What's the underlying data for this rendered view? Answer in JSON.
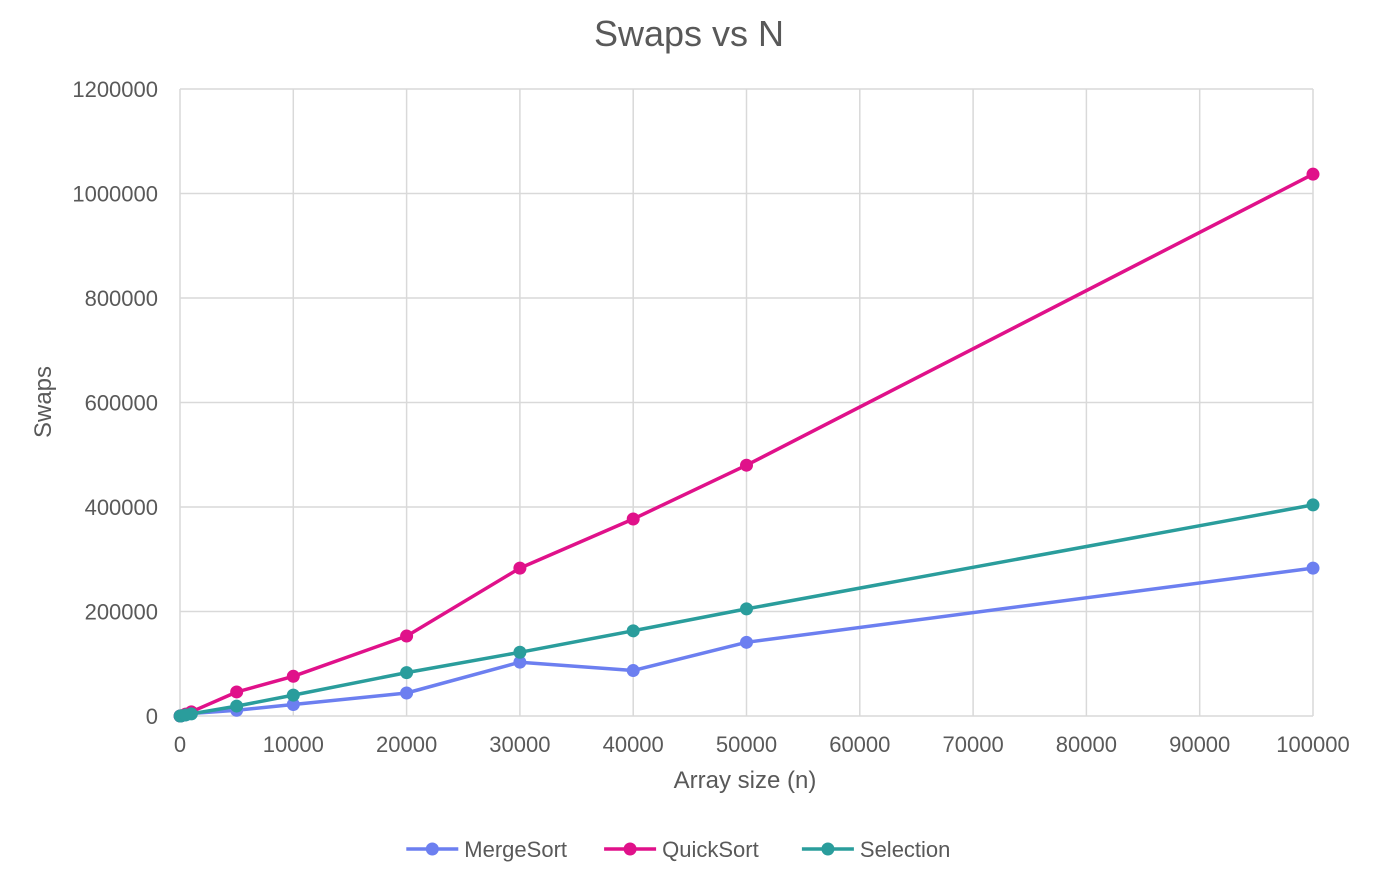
{
  "chart_data": {
    "type": "line",
    "title": "Swaps vs N",
    "xlabel": "Array size (n)",
    "ylabel": "Swaps",
    "xlim": [
      0,
      100000
    ],
    "ylim": [
      0,
      1200000
    ],
    "xticks": [
      0,
      10000,
      20000,
      30000,
      40000,
      50000,
      60000,
      70000,
      80000,
      90000,
      100000
    ],
    "yticks": [
      0,
      200000,
      400000,
      600000,
      800000,
      1000000,
      1200000
    ],
    "xtick_labels": [
      "0",
      "10000",
      "20000",
      "30000",
      "40000",
      "50000",
      "60000",
      "70000",
      "80000",
      "90000",
      "100000"
    ],
    "ytick_labels": [
      "0",
      "200000",
      "400000",
      "600000",
      "800000",
      "1000000",
      "1200000"
    ],
    "grid": true,
    "legend_position": "bottom",
    "x": [
      10,
      100,
      500,
      1000,
      5000,
      10000,
      20000,
      30000,
      40000,
      50000,
      100000
    ],
    "series": [
      {
        "name": "MergeSort",
        "color": "#6c7ff0",
        "values": [
          5,
          280,
          2200,
          4800,
          11000,
          22000,
          44000,
          103000,
          87000,
          141000,
          283000
        ]
      },
      {
        "name": "QuickSort",
        "color": "#e0118a",
        "values": [
          20,
          500,
          3500,
          8000,
          46000,
          76000,
          153000,
          283000,
          377000,
          480000,
          1037000
        ]
      },
      {
        "name": "Selection",
        "color": "#2a9d9c",
        "values": [
          10,
          200,
          2000,
          4000,
          19000,
          40000,
          83000,
          122000,
          163000,
          205000,
          404000
        ]
      }
    ]
  }
}
